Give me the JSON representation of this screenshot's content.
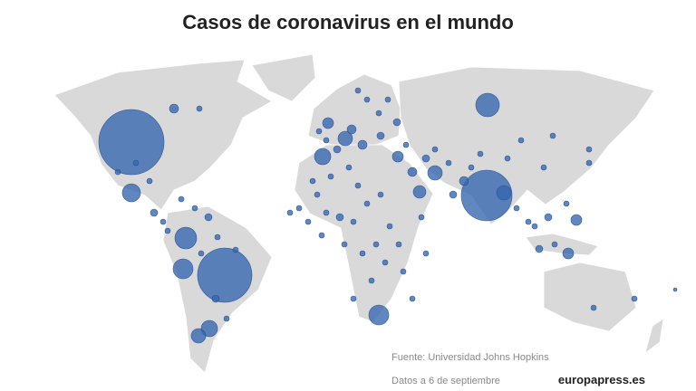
{
  "header": {
    "title": "Casos de coronavirus en el mundo"
  },
  "footer": {
    "source": "Fuente: Universidad Johns Hopkins",
    "date": "Datos a 6 de septiembre",
    "logo": "europapress.es"
  }
}
